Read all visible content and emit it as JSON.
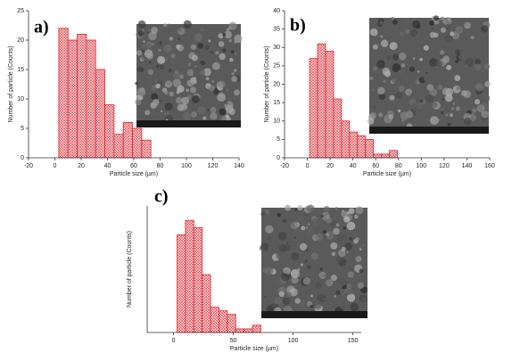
{
  "chart_data": [
    {
      "type": "histogram",
      "panel_label": "a)",
      "xlabel": "Particle size (µm)",
      "ylabel": "Number of particle (Counts)",
      "bins": [
        3,
        10,
        17,
        24,
        31,
        38,
        45,
        52,
        59,
        66,
        73
      ],
      "values": [
        22,
        20,
        21,
        20,
        15,
        9,
        4,
        6,
        5,
        3
      ],
      "color": "#e0202a",
      "xlim": [
        -20,
        140
      ],
      "xticks": [
        -20,
        0,
        20,
        40,
        60,
        80,
        100,
        120,
        140
      ],
      "ylim": [
        0,
        25
      ],
      "yticks": [
        0,
        5,
        10,
        15,
        20,
        25
      ]
    },
    {
      "type": "histogram",
      "panel_label": "b)",
      "xlabel": "Particle size (µm)",
      "ylabel": "Number of particle (Counts)",
      "bins": [
        2,
        9,
        16,
        23,
        30,
        37,
        44,
        51,
        58,
        65,
        72,
        79
      ],
      "values": [
        27,
        31,
        29,
        16,
        10,
        7,
        6,
        5,
        1,
        1,
        2
      ],
      "color": "#e0202a",
      "xlim": [
        -20,
        160
      ],
      "xticks": [
        -20,
        0,
        20,
        40,
        60,
        80,
        100,
        120,
        140,
        160
      ],
      "ylim": [
        0,
        40
      ],
      "yticks": [
        0,
        5,
        10,
        15,
        20,
        25,
        30,
        35,
        40
      ]
    },
    {
      "type": "histogram",
      "panel_label": "c)",
      "xlabel": "Particle size (µm)",
      "ylabel": "Number of particle (Counts)",
      "bins": [
        3,
        10,
        17,
        24,
        31,
        38,
        45,
        52,
        59,
        66,
        73
      ],
      "values": [
        27,
        31,
        29,
        16,
        7,
        6,
        5,
        1,
        1,
        2
      ],
      "color": "#e0202a",
      "xlim": [
        -22,
        157
      ],
      "xticks": [
        0,
        50,
        100,
        150
      ],
      "ylim": [
        0,
        35
      ],
      "yticks": []
    }
  ]
}
